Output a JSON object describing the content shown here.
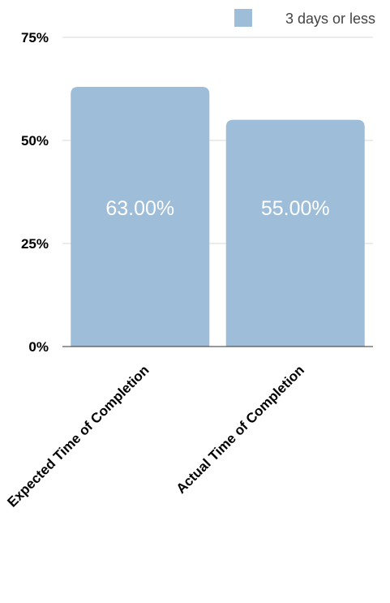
{
  "chart_data": {
    "type": "bar",
    "title": "",
    "xlabel": "",
    "ylabel": "",
    "categories": [
      "Expected Time of Completion",
      "Actual Time of Completion"
    ],
    "series": [
      {
        "name": "3 days or less",
        "values": [
          63.0,
          55.0
        ],
        "data_labels": [
          "63.00%",
          "55.00%"
        ],
        "color": "#9dbdd8"
      }
    ],
    "ylim": [
      0,
      75
    ],
    "y_ticks": [
      0,
      25,
      50,
      75
    ],
    "y_tick_labels": [
      "0%",
      "25%",
      "50%",
      "75%"
    ],
    "grid": true,
    "legend_position": "top-right"
  },
  "colors": {
    "bar": "#9dbdd8",
    "bar_label": "#ffffff",
    "grid": "#d9d9d9",
    "axis": "#333333",
    "text": "#000000",
    "legend_text": "#444444"
  }
}
